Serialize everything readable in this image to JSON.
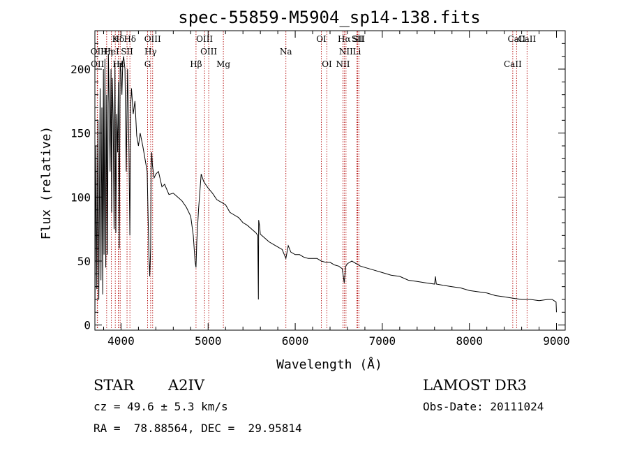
{
  "chart_data": {
    "type": "line",
    "title": "spec-55859-M5904_sp14-138.fits",
    "xlabel": "Wavelength (Å)",
    "ylabel": "Flux (relative)",
    "xlim": [
      3700,
      9100
    ],
    "ylim": [
      -4,
      230
    ],
    "xticks": [
      4000,
      5000,
      6000,
      7000,
      8000,
      9000
    ],
    "yticks": [
      0,
      50,
      100,
      150,
      200
    ],
    "grid": false,
    "series": [
      {
        "name": "spectrum",
        "x": [
          3700,
          3712,
          3722,
          3735,
          3745,
          3760,
          3770,
          3780,
          3790,
          3798,
          3805,
          3815,
          3825,
          3835,
          3845,
          3855,
          3865,
          3875,
          3885,
          3892,
          3900,
          3910,
          3920,
          3930,
          3940,
          3950,
          3960,
          3970,
          3980,
          3990,
          4000,
          4010,
          4020,
          4030,
          4045,
          4060,
          4075,
          4090,
          4101,
          4110,
          4120,
          4140,
          4160,
          4180,
          4200,
          4220,
          4250,
          4280,
          4300,
          4320,
          4330,
          4340,
          4345,
          4352,
          4360,
          4380,
          4400,
          4430,
          4470,
          4500,
          4550,
          4600,
          4650,
          4700,
          4750,
          4800,
          4830,
          4850,
          4861,
          4870,
          4890,
          4920,
          4950,
          5000,
          5050,
          5100,
          5150,
          5200,
          5250,
          5300,
          5350,
          5400,
          5450,
          5500,
          5550,
          5570,
          5577,
          5580,
          5590,
          5600,
          5650,
          5700,
          5750,
          5800,
          5850,
          5893,
          5920,
          5950,
          6000,
          6050,
          6100,
          6150,
          6200,
          6250,
          6300,
          6350,
          6400,
          6450,
          6500,
          6540,
          6563,
          6580,
          6600,
          6650,
          6700,
          6750,
          6800,
          6900,
          7000,
          7100,
          7200,
          7300,
          7400,
          7500,
          7600,
          7610,
          7620,
          7700,
          7800,
          7900,
          8000,
          8100,
          8200,
          8300,
          8400,
          8500,
          8600,
          8700,
          8800,
          8900,
          8950,
          8995,
          9000
        ],
        "values": [
          5,
          140,
          28,
          160,
          20,
          185,
          35,
          170,
          24,
          200,
          55,
          208,
          45,
          180,
          55,
          212,
          170,
          120,
          200,
          88,
          193,
          160,
          75,
          205,
          72,
          165,
          135,
          190,
          60,
          205,
          198,
          180,
          205,
          210,
          200,
          120,
          200,
          140,
          70,
          170,
          185,
          165,
          175,
          148,
          140,
          150,
          140,
          128,
          120,
          55,
          38,
          60,
          120,
          135,
          125,
          115,
          118,
          120,
          108,
          110,
          102,
          103,
          100,
          97,
          92,
          85,
          70,
          50,
          45,
          65,
          90,
          118,
          112,
          107,
          103,
          98,
          96,
          94,
          88,
          86,
          84,
          80,
          78,
          75,
          72,
          70,
          20,
          82,
          78,
          71,
          68,
          65,
          63,
          61,
          59,
          52,
          62,
          57,
          55,
          55,
          53,
          52,
          52,
          52,
          50,
          49,
          49,
          47,
          46,
          44,
          33,
          46,
          48,
          50,
          48,
          46,
          45,
          43,
          41,
          39,
          38,
          35,
          34,
          33,
          32,
          38,
          32,
          31,
          30,
          29,
          27,
          26,
          25,
          23,
          22,
          21,
          20,
          20,
          19,
          20,
          20,
          18,
          10
        ]
      }
    ],
    "annotations": [
      {
        "label": "Hδ",
        "x": 3968
      },
      {
        "label": "K",
        "x": 3934
      },
      {
        "label": "Hδ",
        "x": 4102
      },
      {
        "label": "OIII",
        "x": 4363
      },
      {
        "label": "OIII",
        "x": 4959
      },
      {
        "label": "OI",
        "x": 6300
      },
      {
        "label": "Hα",
        "x": 6563
      },
      {
        "label": "SII",
        "x": 6717
      },
      {
        "label": "CaII",
        "x": 8542
      },
      {
        "label": "OII",
        "x": 3727
      },
      {
        "label": "Hη",
        "x": 3835
      },
      {
        "label": "HeI",
        "x": 3889
      },
      {
        "label": "SII",
        "x": 4069
      },
      {
        "label": "Hγ",
        "x": 4340
      },
      {
        "label": "OIII",
        "x": 5007
      },
      {
        "label": "Na",
        "x": 5893
      },
      {
        "label": "NII",
        "x": 6583
      },
      {
        "label": "Li",
        "x": 6708
      },
      {
        "label": "CaII",
        "x": 8498
      },
      {
        "label": "OII",
        "x": 3730
      },
      {
        "label": "Hε",
        "x": 3970
      },
      {
        "label": "H",
        "x": 3990
      },
      {
        "label": "G",
        "x": 4305
      },
      {
        "label": "Hβ",
        "x": 4861
      },
      {
        "label": "Mg",
        "x": 5175
      },
      {
        "label": "OI",
        "x": 6364
      },
      {
        "label": "NII",
        "x": 6548
      },
      {
        "label": "SII",
        "x": 6731
      },
      {
        "label": "CaII",
        "x": 8662
      }
    ]
  },
  "info": {
    "object_class": "STAR",
    "subclass": "A2IV",
    "survey": "LAMOST DR3",
    "redshift": "cz = 49.6 ± 5.3 km/s",
    "obs_date": "Obs-Date: 20111024",
    "coords": "RA =  78.88564, DEC =  29.95814"
  }
}
